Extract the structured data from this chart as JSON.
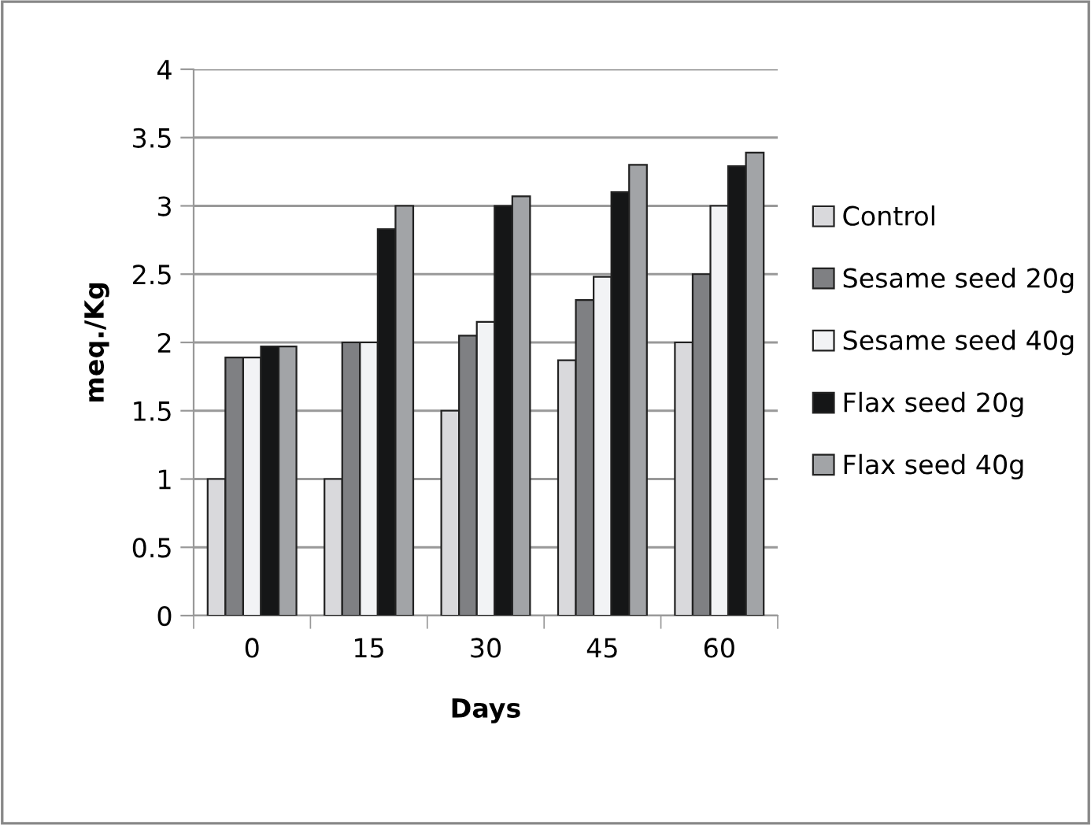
{
  "chart_data": {
    "type": "bar",
    "xlabel": "Days",
    "ylabel": "meq./Kg",
    "categories": [
      "0",
      "15",
      "30",
      "45",
      "60"
    ],
    "series": [
      {
        "name": "Control",
        "color": "#d9d9dc",
        "values": [
          1,
          1,
          1.5,
          1.87,
          2
        ]
      },
      {
        "name": "Sesame seed 20g",
        "color": "#7f8083",
        "values": [
          1.89,
          2,
          2.05,
          2.31,
          2.5
        ]
      },
      {
        "name": "Sesame seed 40g",
        "color": "#f2f3f5",
        "values": [
          1.89,
          2,
          2.15,
          2.48,
          3
        ]
      },
      {
        "name": "Flax seed 20g",
        "color": "#151617",
        "values": [
          1.97,
          2.83,
          3,
          3.1,
          3.29
        ]
      },
      {
        "name": "Flax seed 40g",
        "color": "#a2a4a7",
        "values": [
          1.97,
          3,
          3.07,
          3.3,
          3.39
        ]
      }
    ],
    "ylim": [
      0,
      4
    ],
    "yticks": [
      0,
      0.5,
      1,
      1.5,
      2,
      2.5,
      3,
      3.5,
      4
    ],
    "grid": "y",
    "legend": "right"
  }
}
